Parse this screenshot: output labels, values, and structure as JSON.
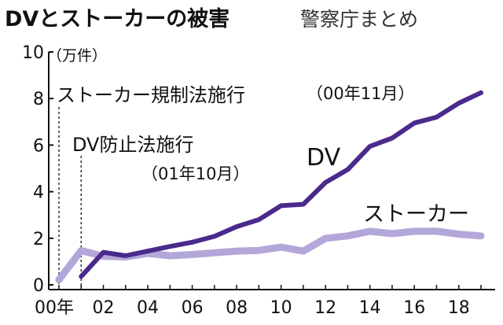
{
  "chart_data": {
    "type": "line",
    "title": "DVとストーカーの被害",
    "subtitle": "警察庁まとめ",
    "unit_label": "（万件）",
    "xlabel": "",
    "ylabel": "",
    "x": [
      2000,
      2001,
      2002,
      2003,
      2004,
      2005,
      2006,
      2007,
      2008,
      2009,
      2010,
      2011,
      2012,
      2013,
      2014,
      2015,
      2016,
      2017,
      2018,
      2019
    ],
    "x_tick_labels": [
      "00年",
      "02",
      "04",
      "06",
      "08",
      "10",
      "12",
      "14",
      "16",
      "18"
    ],
    "x_tick_years": [
      2000,
      2002,
      2004,
      2006,
      2008,
      2010,
      2012,
      2014,
      2016,
      2018
    ],
    "ylim": [
      0,
      10
    ],
    "y_ticks": [
      "0",
      "2",
      "4",
      "6",
      "8",
      "10"
    ],
    "grid": false,
    "series": [
      {
        "name": "DV",
        "color": "#4a2a8c",
        "values": [
          null,
          0.36,
          1.4,
          1.25,
          1.45,
          1.65,
          1.83,
          2.08,
          2.5,
          2.8,
          3.4,
          3.46,
          4.4,
          4.95,
          5.95,
          6.3,
          6.95,
          7.2,
          7.8,
          8.25
        ]
      },
      {
        "name": "ストーカー",
        "color": "#b3a6d9",
        "values": [
          0.22,
          1.47,
          1.23,
          1.2,
          1.35,
          1.25,
          1.3,
          1.38,
          1.45,
          1.48,
          1.62,
          1.45,
          2.0,
          2.1,
          2.3,
          2.2,
          2.3,
          2.3,
          2.18,
          2.1
        ]
      }
    ],
    "annotations": [
      {
        "id": "stalker-law",
        "label": "ストーカー規制法施行",
        "detail": "（00年11月）",
        "year": 2000
      },
      {
        "id": "dv-law",
        "label": "DV防止法施行",
        "detail": "（01年10月）",
        "year": 2001
      }
    ]
  }
}
